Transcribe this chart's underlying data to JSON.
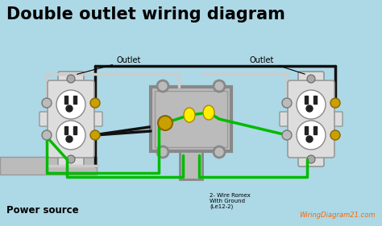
{
  "bg_color": "#ADD8E6",
  "title": "Double outlet wiring diagram",
  "title_fontsize": 15,
  "title_color": "#000000",
  "watermark": "WiringDiagram21.com",
  "watermark_color": "#FF6600",
  "label_outlet_left": "Outlet",
  "label_outlet_right": "Outlet",
  "label_power": "Power source",
  "label_romex": "2- Wire Romex\nWith Ground\n(Le12-2)",
  "outlet_bg": "#FFFFFF",
  "outlet_body": "#DDDDDD",
  "outlet_border": "#AAAAAA",
  "box_color": "#888888",
  "box_fill": "#BBBBBB",
  "wire_black": "#111111",
  "wire_green": "#00BB00",
  "wire_white": "#CCCCCC",
  "wire_yellow": "#FFEE00",
  "screw_gold": "#C8A000",
  "fig_width": 4.74,
  "fig_height": 2.81,
  "dpi": 100
}
